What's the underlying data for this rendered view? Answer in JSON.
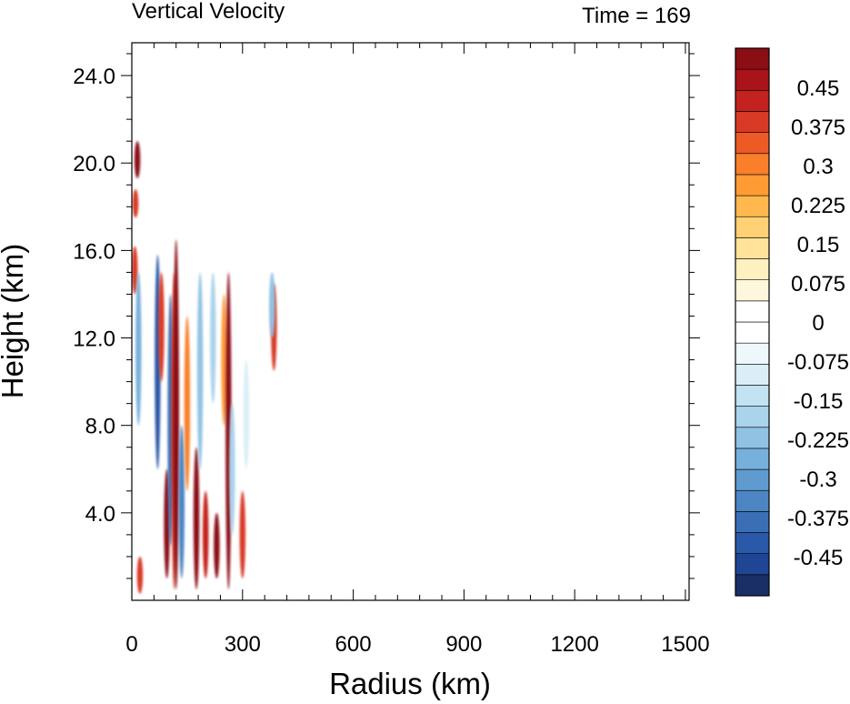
{
  "chart_data": {
    "type": "heatmap",
    "title": "Vertical Velocity",
    "time_label": "Time = 169",
    "xlabel": "Radius (km)",
    "ylabel": "Height (km)",
    "xlim": [
      0,
      1510
    ],
    "ylim": [
      0,
      25.5
    ],
    "x_ticks": [
      "0",
      "300",
      "600",
      "900",
      "1200",
      "1500"
    ],
    "x_tick_values": [
      0,
      300,
      600,
      900,
      1200,
      1500
    ],
    "y_ticks": [
      "4.0",
      "8.0",
      "12.0",
      "16.0",
      "20.0",
      "24.0"
    ],
    "y_tick_values": [
      4,
      8,
      12,
      16,
      20,
      24
    ],
    "colorbar": {
      "min": -0.525,
      "max": 0.525,
      "step": 0.0375,
      "labels": [
        "0.45",
        "0.375",
        "0.3",
        "0.225",
        "0.15",
        "0.075",
        "0",
        "-0.075",
        "-0.15",
        "-0.225",
        "-0.3",
        "-0.375",
        "-0.45"
      ],
      "label_values": [
        0.45,
        0.375,
        0.3,
        0.225,
        0.15,
        0.075,
        0,
        -0.075,
        -0.15,
        -0.225,
        -0.3,
        -0.375,
        -0.45
      ],
      "colors": [
        "#1a2f66",
        "#1f4595",
        "#2959a8",
        "#3a6fb6",
        "#4b85c2",
        "#5f9bcf",
        "#77b0da",
        "#90c2e4",
        "#aad3ec",
        "#c3e2f2",
        "#dbeef7",
        "#eef7fb",
        "#ffffff",
        "#ffffff",
        "#fff7dc",
        "#fff0bf",
        "#ffe39a",
        "#ffd074",
        "#ffb84d",
        "#fe9b35",
        "#f97f2b",
        "#ec5b26",
        "#d93a25",
        "#c4221f",
        "#a9141a",
        "#8a0e14"
      ]
    },
    "features": [
      {
        "x": 15,
        "y0": 19.3,
        "y1": 21.0,
        "value": 0.5
      },
      {
        "x": 10,
        "y0": 17.5,
        "y1": 18.8,
        "value": 0.3
      },
      {
        "x": 8,
        "y0": 14.0,
        "y1": 16.2,
        "value": 0.3
      },
      {
        "x": 18,
        "y0": 8.0,
        "y1": 15.0,
        "value": -0.3
      },
      {
        "x": 22,
        "y0": 0.3,
        "y1": 2.0,
        "value": 0.3
      },
      {
        "x": 70,
        "y0": 6.0,
        "y1": 15.8,
        "value": -0.45
      },
      {
        "x": 80,
        "y0": 10.0,
        "y1": 15.0,
        "value": 0.3
      },
      {
        "x": 95,
        "y0": 1.0,
        "y1": 6.0,
        "value": 0.5
      },
      {
        "x": 105,
        "y0": 2.5,
        "y1": 14.0,
        "value": -0.4
      },
      {
        "x": 115,
        "y0": 0.5,
        "y1": 15.0,
        "value": 0.3
      },
      {
        "x": 120,
        "y0": 0.5,
        "y1": 16.5,
        "value": 0.5
      },
      {
        "x": 135,
        "y0": 1.0,
        "y1": 8.0,
        "value": -0.35
      },
      {
        "x": 150,
        "y0": 5.0,
        "y1": 13.0,
        "value": 0.25
      },
      {
        "x": 175,
        "y0": 0.5,
        "y1": 7.0,
        "value": 0.45
      },
      {
        "x": 185,
        "y0": 6.0,
        "y1": 15.0,
        "value": -0.25
      },
      {
        "x": 200,
        "y0": 1.0,
        "y1": 5.0,
        "value": 0.35
      },
      {
        "x": 220,
        "y0": 9.0,
        "y1": 15.0,
        "value": -0.2
      },
      {
        "x": 230,
        "y0": 1.0,
        "y1": 4.0,
        "value": 0.45
      },
      {
        "x": 250,
        "y0": 8.0,
        "y1": 14.0,
        "value": 0.2
      },
      {
        "x": 262,
        "y0": 0.5,
        "y1": 15.0,
        "value": 0.5
      },
      {
        "x": 272,
        "y0": 3.0,
        "y1": 9.0,
        "value": -0.2
      },
      {
        "x": 300,
        "y0": 1.0,
        "y1": 5.0,
        "value": 0.3
      },
      {
        "x": 310,
        "y0": 6.0,
        "y1": 11.0,
        "value": -0.15
      },
      {
        "x": 385,
        "y0": 10.5,
        "y1": 14.5,
        "value": 0.3
      },
      {
        "x": 380,
        "y0": 12.0,
        "y1": 15.0,
        "value": -0.25
      }
    ]
  }
}
